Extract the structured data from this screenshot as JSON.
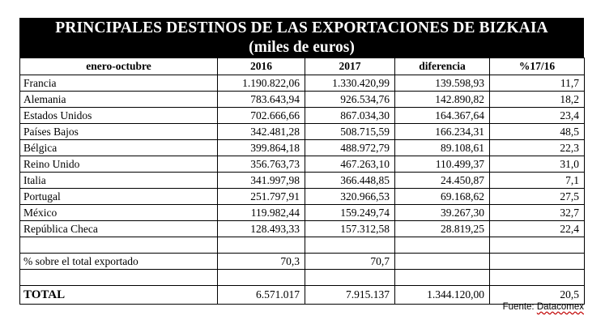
{
  "title_line1": "PRINCIPALES DESTINOS DE LAS EXPORTACIONES DE BIZKAIA",
  "title_line2": "(miles de euros)",
  "columns": {
    "period": "enero-octubre",
    "y2016": "2016",
    "y2017": "2017",
    "diff": "diferencia",
    "pct": "%17/16"
  },
  "rows": [
    {
      "country": "Francia",
      "v2016": "1.190.822,06",
      "v2017": "1.330.420,99",
      "diff": "139.598,93",
      "pct": "11,7"
    },
    {
      "country": "Alemania",
      "v2016": "783.643,94",
      "v2017": "926.534,76",
      "diff": "142.890,82",
      "pct": "18,2"
    },
    {
      "country": "Estados Unidos",
      "v2016": "702.666,66",
      "v2017": "867.034,30",
      "diff": "164.367,64",
      "pct": "23,4"
    },
    {
      "country": "Países Bajos",
      "v2016": "342.481,28",
      "v2017": "508.715,59",
      "diff": "166.234,31",
      "pct": "48,5"
    },
    {
      "country": "Bélgica",
      "v2016": "399.864,18",
      "v2017": "488.972,79",
      "diff": "89.108,61",
      "pct": "22,3"
    },
    {
      "country": "Reino Unido",
      "v2016": "356.763,73",
      "v2017": "467.263,10",
      "diff": "110.499,37",
      "pct": "31,0"
    },
    {
      "country": "Italia",
      "v2016": "341.997,98",
      "v2017": "366.448,85",
      "diff": "24.450,87",
      "pct": "7,1"
    },
    {
      "country": "Portugal",
      "v2016": "251.797,91",
      "v2017": "320.966,53",
      "diff": "69.168,62",
      "pct": "27,5"
    },
    {
      "country": "México",
      "v2016": "119.982,44",
      "v2017": "159.249,74",
      "diff": "39.267,30",
      "pct": "32,7"
    },
    {
      "country": "República Checa",
      "v2016": "128.493,33",
      "v2017": "157.312,58",
      "diff": "28.819,25",
      "pct": "22,4"
    }
  ],
  "share": {
    "label": "% sobre el total exportado",
    "v2016": "70,3",
    "v2017": "70,7"
  },
  "total": {
    "label": "TOTAL",
    "v2016": "6.571.017",
    "v2017": "7.915.137",
    "diff": "1.344.120,00",
    "pct": "20,5"
  },
  "source": {
    "prefix": "Fuente: ",
    "name": "Datacomex"
  }
}
